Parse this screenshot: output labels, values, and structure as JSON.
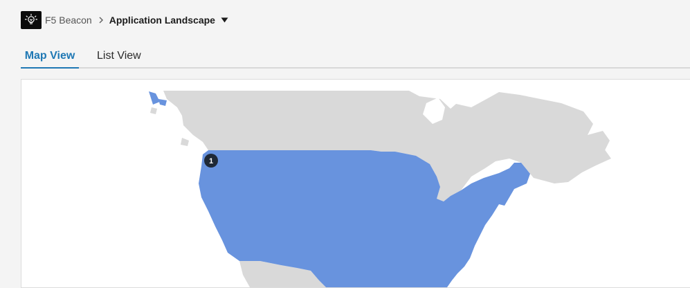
{
  "breadcrumb": {
    "root": "F5 Beacon",
    "current": "Application Landscape"
  },
  "tabs": [
    {
      "label": "Map View",
      "active": true
    },
    {
      "label": "List View",
      "active": false
    }
  ],
  "map": {
    "region_color": "#6893de",
    "land_color": "#d9d9d9",
    "marker": {
      "count": "1"
    }
  },
  "icons": {
    "logo": "lightbulb-icon",
    "separator": "chevron-right-icon",
    "dropdown": "caret-down-icon"
  }
}
